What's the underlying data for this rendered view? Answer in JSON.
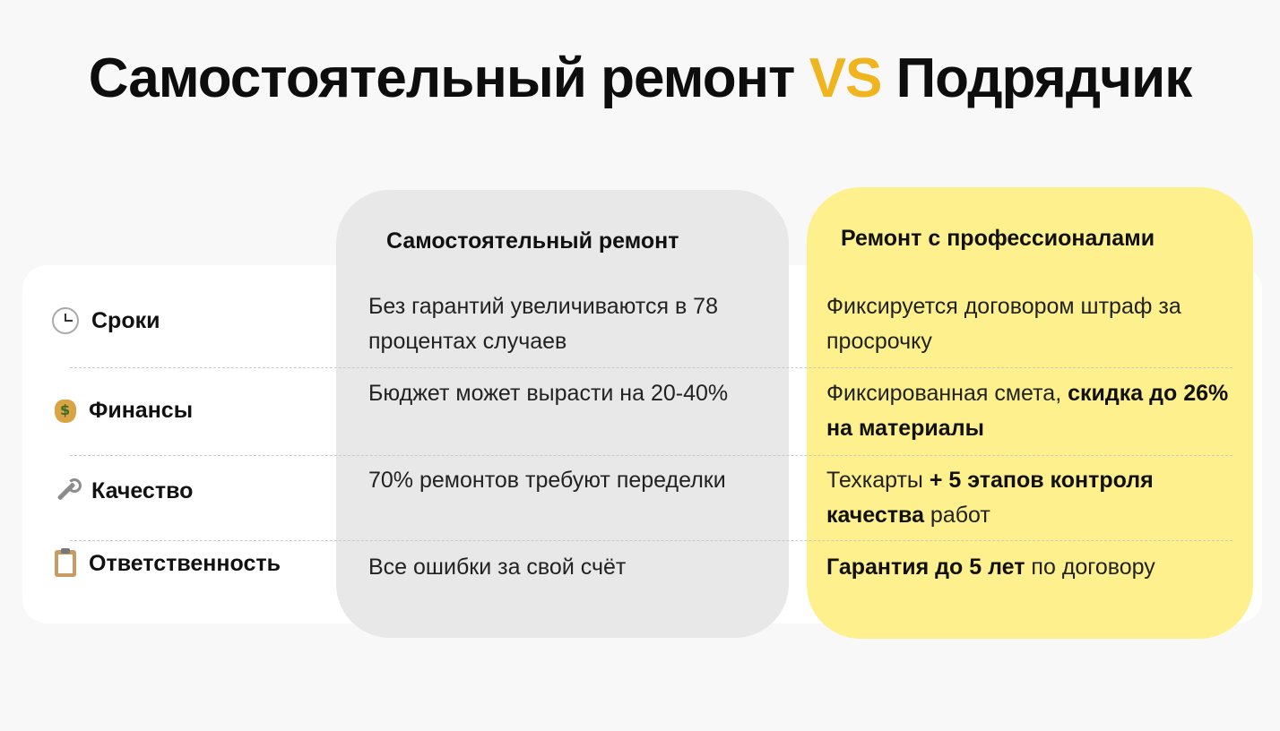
{
  "title": {
    "part1": "Самостоятельный ремонт ",
    "vs": "VS",
    "part2": " Подрядчик"
  },
  "columns": {
    "self": "Самостоятельный ремонт",
    "pro": "Ремонт с профессионалами"
  },
  "rows": [
    {
      "icon": "clock-icon",
      "label": "Сроки",
      "self": "Без гарантий увеличиваются в 78 процентах случаев",
      "pro": [
        {
          "text": "Фиксируется договором штраф за просрочку",
          "bold": false
        }
      ]
    },
    {
      "icon": "money-bag-icon",
      "label": "Финансы",
      "self": "Бюджет может вырасти на 20-40%",
      "pro": [
        {
          "text": "Фиксированная смета, ",
          "bold": false
        },
        {
          "text": "скидка до 26% на материалы",
          "bold": true
        }
      ]
    },
    {
      "icon": "wrench-icon",
      "label": "Качество",
      "self": "70% ремонтов требуют переделки",
      "pro": [
        {
          "text": "Техкарты ",
          "bold": false
        },
        {
          "text": "+ 5 этапов контроля качества",
          "bold": true
        },
        {
          "text": " работ",
          "bold": false
        }
      ]
    },
    {
      "icon": "clipboard-icon",
      "label": "Ответственность",
      "self": "Все ошибки за свой счёт",
      "pro": [
        {
          "text": "Гарантия до 5 лет",
          "bold": true
        },
        {
          "text": " по договору",
          "bold": false
        }
      ]
    }
  ],
  "colors": {
    "accent": "#f0b41e",
    "pro_bg": "#fdf08d",
    "self_bg": "#e8e8e8"
  }
}
